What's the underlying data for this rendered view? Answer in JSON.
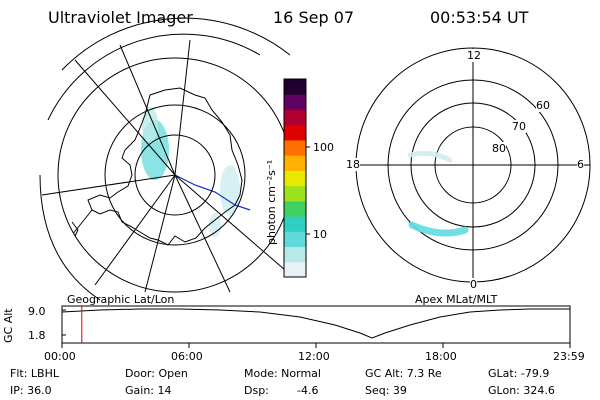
{
  "header": {
    "title": "Ultraviolet Imager",
    "date": "16 Sep 07",
    "time": "00:53:54 UT"
  },
  "panels": {
    "left_label": "Geographic Lat/Lon",
    "right_label": "Apex MLat/MLT"
  },
  "colorbar": {
    "unit_label": "photon cm⁻²s⁻¹",
    "tick_100": "100",
    "tick_10": "10",
    "colors": [
      "#e6f2f5",
      "#b9e8e8",
      "#5fd9d9",
      "#2fd0c0",
      "#40d060",
      "#9ee21e",
      "#e8e800",
      "#ffb000",
      "#ff7000",
      "#e00000",
      "#b00030",
      "#600060",
      "#200030"
    ]
  },
  "polar": {
    "mlt_top": "12",
    "mlt_bottom": "0",
    "mlt_left": "18",
    "mlt_right": "6",
    "lat_60": "60",
    "lat_70": "70",
    "lat_80": "80"
  },
  "altitude_plot": {
    "axis_label": "GC Alt",
    "ytick_top": "9.0",
    "ytick_bottom": "1.8",
    "xticks": [
      "00:00",
      "06:00",
      "12:00",
      "18:00",
      "23:59"
    ],
    "current_time_fraction": 0.039
  },
  "info": {
    "flt": "Flt: LBHL",
    "ip": "IP: 36.0",
    "door": "Door: Open",
    "gain": "Gain: 14",
    "mode": "Mode: Normal",
    "dsp": "Dsp:",
    "dsp_value": "-4.6",
    "gc_alt": "GC Alt: 7.3 Re",
    "seq": "Seq: 39",
    "glat": "GLat: -79.9",
    "glon": "GLon: 324.6"
  }
}
